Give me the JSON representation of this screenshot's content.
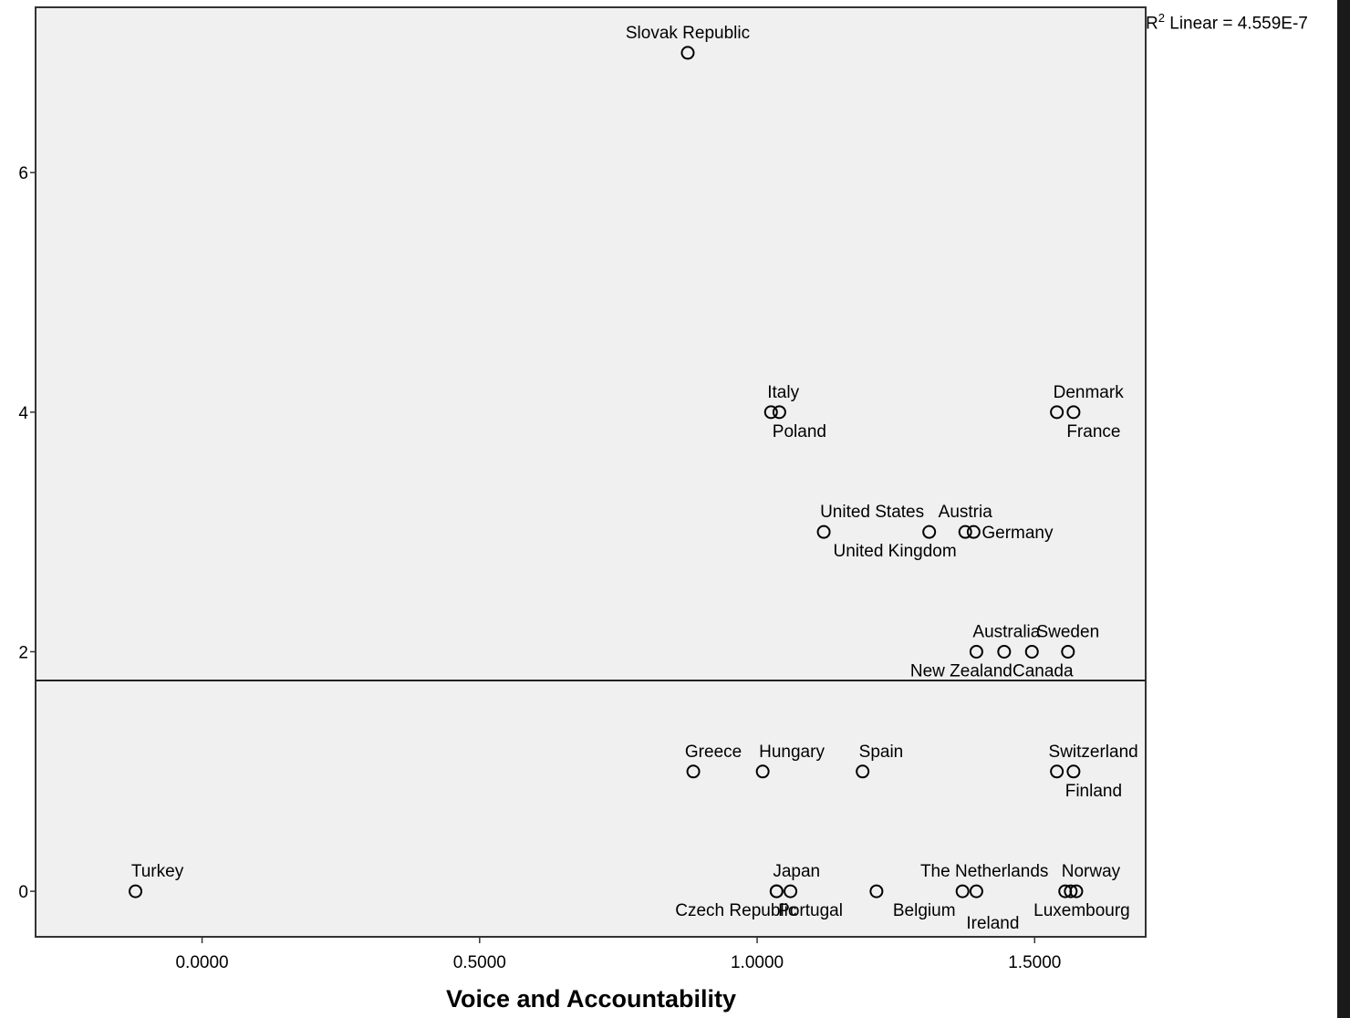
{
  "chart_data": {
    "type": "scatter",
    "title": "",
    "xlabel": "Voice and Accountability",
    "ylabel": "",
    "xlim": [
      -0.3,
      1.7
    ],
    "ylim": [
      -0.38,
      7.38
    ],
    "x_ticks": [
      {
        "value": 0.0,
        "label": "0.0000"
      },
      {
        "value": 0.5,
        "label": "0.5000"
      },
      {
        "value": 1.0,
        "label": "1.0000"
      },
      {
        "value": 1.5,
        "label": "1.5000"
      }
    ],
    "y_ticks": [
      {
        "value": 0,
        "label": "0"
      },
      {
        "value": 2,
        "label": "2"
      },
      {
        "value": 4,
        "label": "4"
      },
      {
        "value": 6,
        "label": "6"
      }
    ],
    "fit_line": {
      "type": "linear",
      "r2_prefix": "R",
      "r2_sup": "2",
      "r2_text": "Linear = 4.559E-7",
      "y_const": 1.76
    },
    "points": [
      {
        "name": "Slovak Republic",
        "x": 0.875,
        "y": 7,
        "label_pos": "above"
      },
      {
        "name": "Italy",
        "x": 1.025,
        "y": 4,
        "label_pos": "above-right"
      },
      {
        "name": "Poland",
        "x": 1.04,
        "y": 4,
        "label_pos": "below"
      },
      {
        "name": "Denmark",
        "x": 1.54,
        "y": 4,
        "label_pos": "above-right"
      },
      {
        "name": "France",
        "x": 1.57,
        "y": 4,
        "label_pos": "below"
      },
      {
        "name": "United States",
        "x": 1.12,
        "y": 3,
        "label_pos": "above-right"
      },
      {
        "name": "United Kingdom",
        "x": 1.31,
        "y": 3,
        "label_pos": "below-left"
      },
      {
        "name": "Austria",
        "x": 1.375,
        "y": 3,
        "label_pos": "above"
      },
      {
        "name": "Germany",
        "x": 1.39,
        "y": 3,
        "label_pos": "right"
      },
      {
        "name": "Australia",
        "x": 1.395,
        "y": 2,
        "label_pos": "above-right"
      },
      {
        "name": "New Zealand",
        "x": 1.445,
        "y": 2,
        "label_pos": "below-left"
      },
      {
        "name": "Canada",
        "x": 1.495,
        "y": 2,
        "label_pos": "below"
      },
      {
        "name": "Sweden",
        "x": 1.56,
        "y": 2,
        "label_pos": "above"
      },
      {
        "name": "Greece",
        "x": 0.885,
        "y": 1,
        "label_pos": "above-center"
      },
      {
        "name": "Hungary",
        "x": 1.01,
        "y": 1,
        "label_pos": "above-right"
      },
      {
        "name": "Spain",
        "x": 1.19,
        "y": 1,
        "label_pos": "above-right"
      },
      {
        "name": "Switzerland",
        "x": 1.54,
        "y": 1,
        "label_pos": "above-center"
      },
      {
        "name": "Finland",
        "x": 1.57,
        "y": 1,
        "label_pos": "below"
      },
      {
        "name": "Turkey",
        "x": -0.12,
        "y": 0,
        "label_pos": "above-left"
      },
      {
        "name": "Japan",
        "x": 1.035,
        "y": 0,
        "label_pos": "above-right"
      },
      {
        "name": "Czech Republic",
        "x": 1.035,
        "y": 0,
        "label_pos": "below-left"
      },
      {
        "name": "Portugal",
        "x": 1.06,
        "y": 0,
        "label_pos": "below"
      },
      {
        "name": "Belgium",
        "x": 1.215,
        "y": 0,
        "label_pos": "below-right"
      },
      {
        "name": "The Netherlands",
        "x": 1.37,
        "y": 0,
        "label_pos": "above-center"
      },
      {
        "name": "Ireland",
        "x": 1.395,
        "y": 0,
        "label_pos": "below"
      },
      {
        "name": "Norway",
        "x": 1.555,
        "y": 0,
        "label_pos": "above-right"
      },
      {
        "name": "Luxembourg",
        "x": 1.575,
        "y": 0,
        "label_pos": "below"
      },
      {
        "name": "",
        "x": 1.565,
        "y": 0,
        "label_pos": "none"
      }
    ]
  }
}
